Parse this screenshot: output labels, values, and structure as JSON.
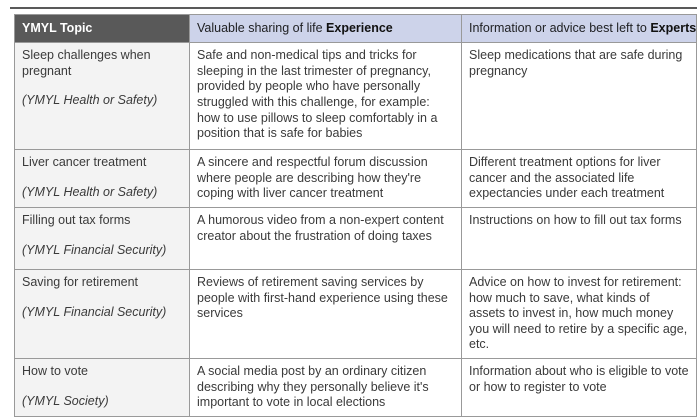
{
  "page": {
    "background_color": "#ffffff",
    "cutoff_border_color": "#595959"
  },
  "table": {
    "colors": {
      "topic_header_bg": "#595959",
      "topic_header_text": "#ffffff",
      "blue_header_bg": "#cdd3ea",
      "topic_column_bg": "#f3f3f3",
      "border": "#999999",
      "body_text": "#3a3a3a"
    },
    "header": {
      "topic": "YMYL Topic",
      "experience_prefix": "Valuable sharing of life ",
      "experience_bold": "Experience",
      "experts_prefix": "Information or advice best left to ",
      "experts_bold": "Experts"
    },
    "rows": [
      {
        "topic": "Sleep challenges when pregnant",
        "category": "(YMYL Health or Safety)",
        "experience": "Safe and non-medical tips and tricks for sleeping in the last trimester of pregnancy, provided by people who have personally struggled with this challenge, for example: how to use pillows to sleep comfortably in a position that is safe for babies",
        "experts": "Sleep medications that are safe during pregnancy"
      },
      {
        "topic": "Liver cancer treatment",
        "category": "(YMYL Health or Safety)",
        "experience": "A sincere and respectful forum discussion where people are describing how they're coping with liver cancer treatment",
        "experts": "Different treatment options for liver cancer and the associated life expectancies under each treatment"
      },
      {
        "topic": "Filling out tax forms",
        "category": "(YMYL Financial Security)",
        "experience": "A humorous video from a non-expert content creator about the frustration of doing taxes",
        "experts": "Instructions on how to fill out tax forms"
      },
      {
        "topic": "Saving for retirement",
        "category": "(YMYL Financial Security)",
        "experience": "Reviews of retirement saving services by people with first-hand experience using these services",
        "experts": "Advice on how to invest for retirement: how much to save, what kinds of assets to invest in, how much money you will need to retire by a specific age, etc."
      },
      {
        "topic": "How to vote",
        "category": "(YMYL Society)",
        "experience": "A social media post by an ordinary citizen describing why they personally believe it's important to vote in local elections",
        "experts": "Information about who is eligible to vote or how to register to vote"
      }
    ]
  }
}
